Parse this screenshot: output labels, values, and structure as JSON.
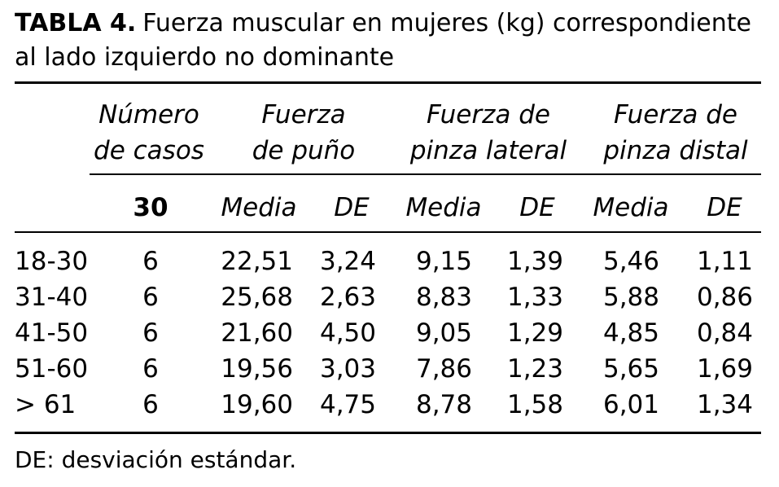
{
  "caption": {
    "label": "TABLA 4.",
    "text": "Fuerza muscular en mujeres (kg) correspondiente al lado izquierdo no dominante"
  },
  "headers": {
    "num": [
      "Número",
      "de casos"
    ],
    "puno": [
      "Fuerza",
      "de puño"
    ],
    "lateral": [
      "Fuerza de",
      "pinza lateral"
    ],
    "distal": [
      "Fuerza de",
      "pinza distal"
    ]
  },
  "subheaders": {
    "n": "30",
    "media": "Media",
    "de": "DE"
  },
  "rows": [
    {
      "age": "18-30",
      "n": "6",
      "pm": "22,51",
      "pd": "3,24",
      "lm": "9,15",
      "ld": "1,39",
      "dm": "5,46",
      "dd": "1,11"
    },
    {
      "age": "31-40",
      "n": "6",
      "pm": "25,68",
      "pd": "2,63",
      "lm": "8,83",
      "ld": "1,33",
      "dm": "5,88",
      "dd": "0,86"
    },
    {
      "age": "41-50",
      "n": "6",
      "pm": "21,60",
      "pd": "4,50",
      "lm": "9,05",
      "ld": "1,29",
      "dm": "4,85",
      "dd": "0,84"
    },
    {
      "age": "51-60",
      "n": "6",
      "pm": "19,56",
      "pd": "3,03",
      "lm": "7,86",
      "ld": "1,23",
      "dm": "5,65",
      "dd": "1,69"
    },
    {
      "age": "> 61",
      "n": "6",
      "pm": "19,60",
      "pd": "4,75",
      "lm": "8,78",
      "ld": "1,58",
      "dm": "6,01",
      "dd": "1,34"
    }
  ],
  "footnote": "DE: desviación estándar."
}
